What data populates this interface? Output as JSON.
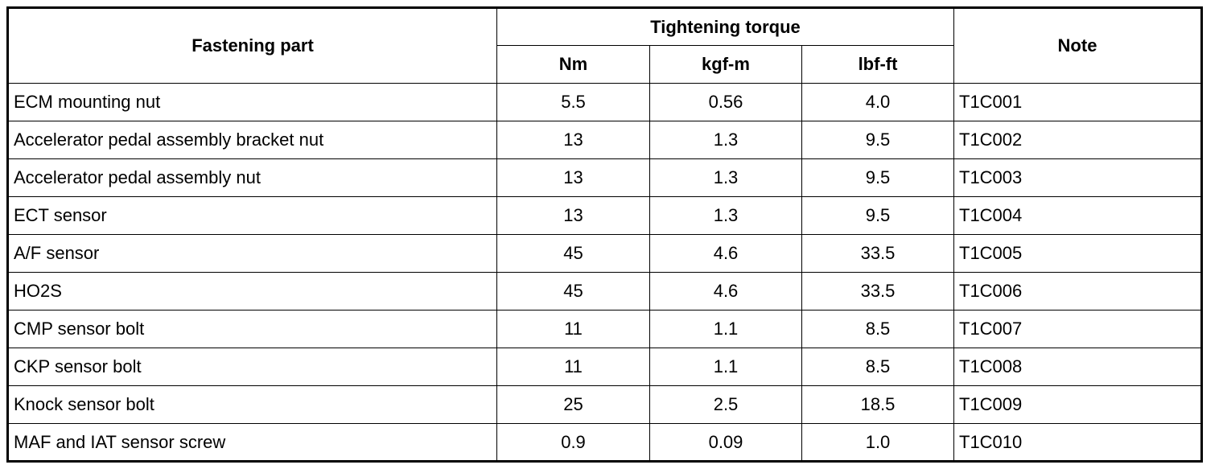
{
  "table": {
    "header": {
      "part": "Fastening part",
      "torque": "Tightening torque",
      "units": [
        "Nm",
        "kgf-m",
        "lbf-ft"
      ],
      "note": "Note"
    },
    "rows": [
      [
        "ECM mounting nut",
        "5.5",
        "0.56",
        "4.0",
        "T1C001"
      ],
      [
        "Accelerator pedal assembly bracket nut",
        "13",
        "1.3",
        "9.5",
        "T1C002"
      ],
      [
        "Accelerator pedal assembly nut",
        "13",
        "1.3",
        "9.5",
        "T1C003"
      ],
      [
        "ECT sensor",
        "13",
        "1.3",
        "9.5",
        "T1C004"
      ],
      [
        "A/F sensor",
        "45",
        "4.6",
        "33.5",
        "T1C005"
      ],
      [
        "HO2S",
        "45",
        "4.6",
        "33.5",
        "T1C006"
      ],
      [
        "CMP sensor bolt",
        "11",
        "1.1",
        "8.5",
        "T1C007"
      ],
      [
        "CKP sensor bolt",
        "11",
        "1.1",
        "8.5",
        "T1C008"
      ],
      [
        "Knock sensor bolt",
        "25",
        "2.5",
        "18.5",
        "T1C009"
      ],
      [
        "MAF and IAT sensor screw",
        "0.9",
        "0.09",
        "1.0",
        "T1C010"
      ]
    ]
  }
}
